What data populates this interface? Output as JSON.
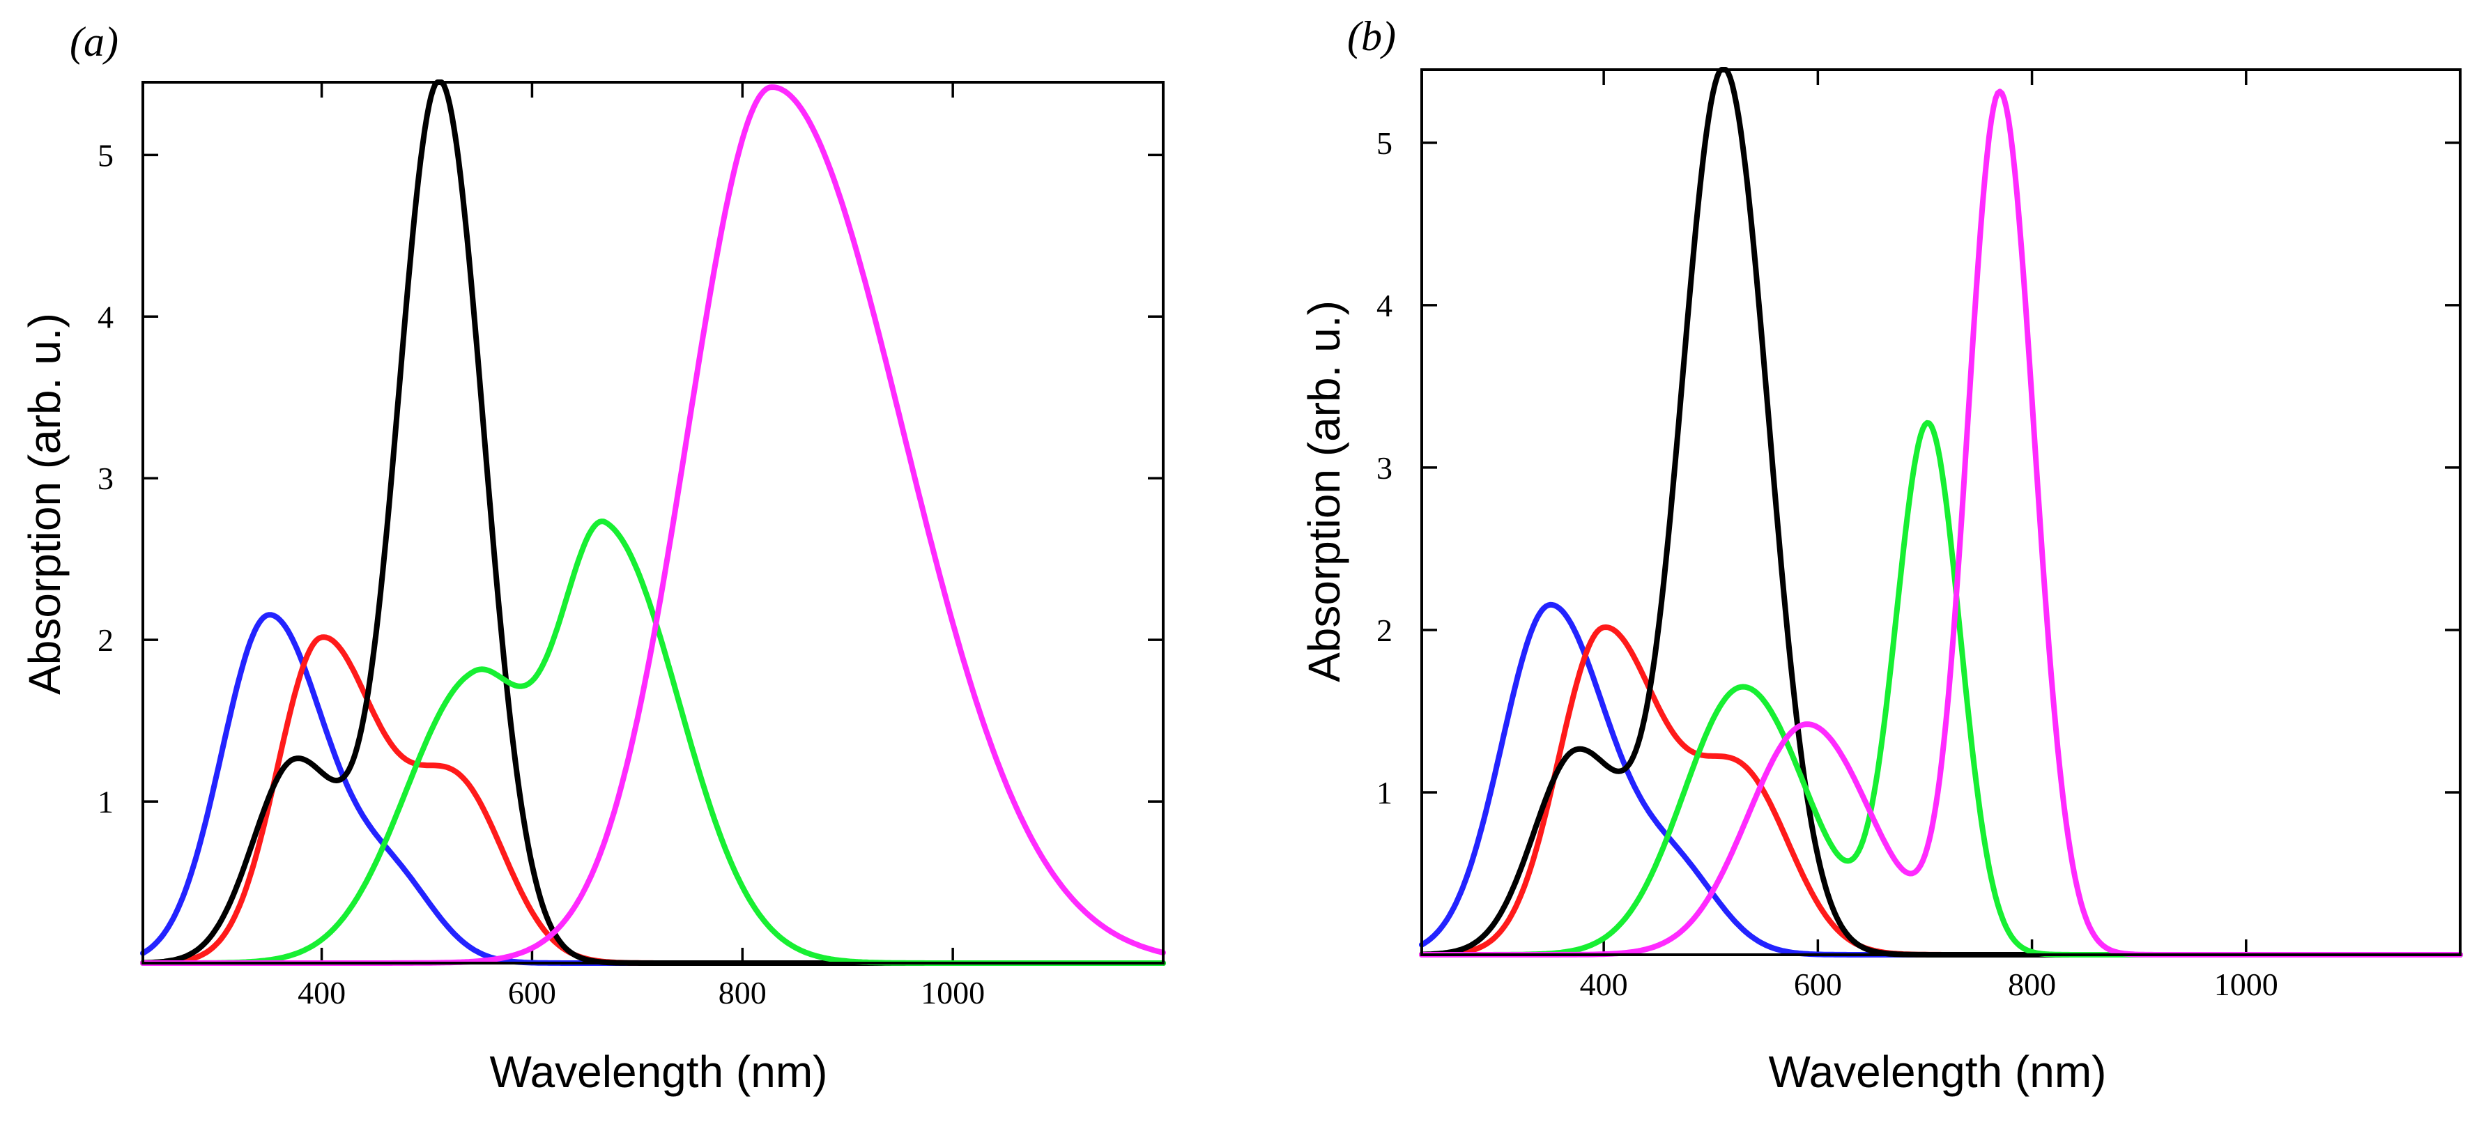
{
  "chart_data": [
    {
      "panel": "a",
      "type": "line",
      "panel_label": "(a)",
      "xlabel": "Wavelength (nm)",
      "ylabel": "Absorption (arb. u.)",
      "xlim": [
        230,
        1200
      ],
      "ylim": [
        0,
        5.45
      ],
      "xticks": [
        400,
        600,
        800,
        1000
      ],
      "yticks": [
        1,
        2,
        3,
        4,
        5
      ],
      "series": [
        {
          "name": "blue",
          "color": "#2323ff",
          "peaks": [
            [
              350,
              2.15,
              45,
              55
            ],
            [
              470,
              0.45,
              40,
              40
            ]
          ]
        },
        {
          "name": "red",
          "color": "#ff1a1a",
          "peaks": [
            [
              400,
              2.0,
              42,
              55
            ],
            [
              530,
              1.05,
              45,
              45
            ]
          ]
        },
        {
          "name": "black",
          "color": "#000000",
          "peaks": [
            [
              375,
              1.25,
              40,
              45
            ],
            [
              512,
              5.45,
              40,
              42
            ]
          ]
        },
        {
          "name": "green",
          "color": "#17ef32",
          "peaks": [
            [
              545,
              1.75,
              65,
              50
            ],
            [
              670,
              2.65,
              45,
              70
            ]
          ]
        },
        {
          "name": "magenta",
          "color": "#ff2aff",
          "peaks": [
            [
              828,
              5.42,
              80,
              125
            ]
          ]
        }
      ]
    },
    {
      "panel": "b",
      "type": "line",
      "panel_label": "(b)",
      "xlabel": "Wavelength (nm)",
      "ylabel": "Absorption (arb. u.)",
      "xlim": [
        230,
        1200
      ],
      "ylim": [
        0,
        5.45
      ],
      "xticks": [
        400,
        600,
        800,
        1000
      ],
      "yticks": [
        1,
        2,
        3,
        4,
        5
      ],
      "series": [
        {
          "name": "blue",
          "color": "#2323ff",
          "peaks": [
            [
              350,
              2.15,
              45,
              55
            ],
            [
              470,
              0.45,
              40,
              40
            ]
          ]
        },
        {
          "name": "red",
          "color": "#ff1a1a",
          "peaks": [
            [
              400,
              2.0,
              42,
              55
            ],
            [
              530,
              1.05,
              45,
              45
            ]
          ]
        },
        {
          "name": "black",
          "color": "#000000",
          "peaks": [
            [
              375,
              1.25,
              40,
              45
            ],
            [
              512,
              5.45,
              40,
              42
            ]
          ]
        },
        {
          "name": "green",
          "color": "#17ef32",
          "peaks": [
            [
              530,
              1.65,
              55,
              60
            ],
            [
              703,
              3.25,
              30,
              30
            ]
          ]
        },
        {
          "name": "magenta",
          "color": "#ff2aff",
          "peaks": [
            [
              590,
              1.42,
              55,
              60
            ],
            [
              770,
              5.3,
              30,
              32
            ]
          ]
        }
      ]
    }
  ]
}
